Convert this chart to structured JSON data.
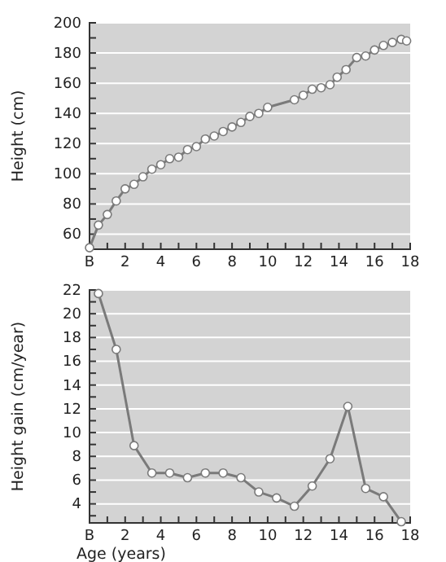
{
  "chart_data": [
    {
      "type": "line",
      "ylabel": "Height (cm)",
      "grid": "y",
      "marker": "circle",
      "line_style": "solid",
      "xlim": [
        0,
        18
      ],
      "ylim": [
        50,
        200
      ],
      "xticks": [
        {
          "value": 0,
          "label": "B"
        },
        {
          "value": 1,
          "label": null
        },
        2,
        {
          "value": 3,
          "label": null
        },
        4,
        {
          "value": 5,
          "label": null
        },
        6,
        {
          "value": 7,
          "label": null
        },
        8,
        {
          "value": 9,
          "label": null
        },
        10,
        {
          "value": 11,
          "label": null
        },
        12,
        {
          "value": 13,
          "label": null
        },
        14,
        {
          "value": 15,
          "label": null
        },
        16,
        {
          "value": 17,
          "label": null
        },
        18
      ],
      "yticks": [
        60,
        {
          "value": 70,
          "label": null
        },
        80,
        {
          "value": 90,
          "label": null
        },
        100,
        {
          "value": 110,
          "label": null
        },
        120,
        {
          "value": 130,
          "label": null
        },
        140,
        {
          "value": 150,
          "label": null
        },
        160,
        {
          "value": 170,
          "label": null
        },
        180,
        {
          "value": 190,
          "label": null
        },
        200
      ],
      "series": [
        {
          "color": "#7a7a7a",
          "x": [
            0,
            0.5,
            1,
            1.5,
            2,
            2.5,
            3,
            3.5,
            4,
            4.5,
            5,
            5.5,
            6,
            6.5,
            7,
            7.5,
            8,
            8.5,
            9,
            9.5,
            10,
            11.5,
            12,
            12.5,
            13,
            13.5,
            13.9,
            14.4,
            15,
            15.5,
            16,
            16.5,
            17,
            17.5,
            17.8
          ],
          "values": [
            51,
            66,
            73,
            82,
            90,
            93,
            98,
            103,
            106,
            110,
            111,
            116,
            118,
            123,
            125,
            128,
            131,
            134,
            138,
            140,
            144,
            149,
            152,
            156,
            157,
            159,
            164,
            169,
            177,
            178,
            182,
            185,
            187,
            189,
            188
          ]
        }
      ]
    },
    {
      "type": "line",
      "xlabel": "Age (years)",
      "ylabel": "Height gain (cm/year)",
      "grid": "y",
      "marker": "circle",
      "line_style": "solid",
      "xlim": [
        0,
        18
      ],
      "ylim": [
        2.4,
        22
      ],
      "xticks": [
        {
          "value": 0,
          "label": "B"
        },
        {
          "value": 1,
          "label": null
        },
        2,
        {
          "value": 3,
          "label": null
        },
        4,
        {
          "value": 5,
          "label": null
        },
        6,
        {
          "value": 7,
          "label": null
        },
        8,
        {
          "value": 9,
          "label": null
        },
        10,
        {
          "value": 11,
          "label": null
        },
        12,
        {
          "value": 13,
          "label": null
        },
        14,
        {
          "value": 15,
          "label": null
        },
        16,
        {
          "value": 17,
          "label": null
        },
        18
      ],
      "yticks": [
        {
          "value": 3,
          "label": null
        },
        4,
        {
          "value": 5,
          "label": null
        },
        6,
        {
          "value": 7,
          "label": null
        },
        8,
        {
          "value": 9,
          "label": null
        },
        10,
        {
          "value": 11,
          "label": null
        },
        12,
        {
          "value": 13,
          "label": null
        },
        14,
        {
          "value": 15,
          "label": null
        },
        16,
        {
          "value": 17,
          "label": null
        },
        18,
        {
          "value": 19,
          "label": null
        },
        20,
        {
          "value": 21,
          "label": null
        },
        22
      ],
      "series": [
        {
          "color": "#7a7a7a",
          "x": [
            0.5,
            1.5,
            2.5,
            3.5,
            4.5,
            5.5,
            6.5,
            7.5,
            8.5,
            9.5,
            10.5,
            11.5,
            12.5,
            13.5,
            14.5,
            15.5,
            16.5,
            17.5
          ],
          "values": [
            21.7,
            17,
            8.9,
            6.6,
            6.6,
            6.2,
            6.6,
            6.6,
            6.2,
            5,
            4.5,
            3.8,
            5.5,
            7.8,
            12.2,
            5.3,
            4.6,
            2.5
          ]
        }
      ]
    }
  ]
}
